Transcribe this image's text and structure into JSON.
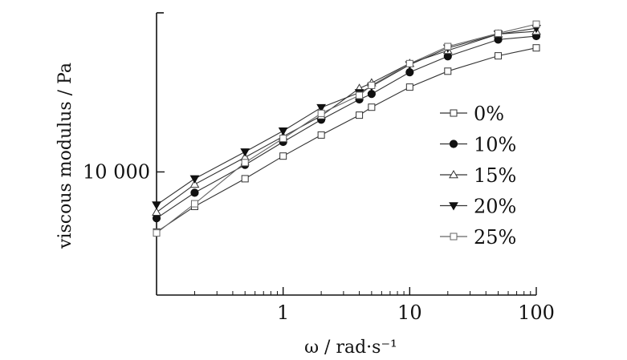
{
  "chart_data": {
    "type": "line",
    "xlabel": "ω / rad·s⁻¹",
    "ylabel": "viscous modulus / Pa",
    "xscale": "log",
    "yscale": "log",
    "xlim": [
      0.1,
      100
    ],
    "ylim": [
      2000,
      80000
    ],
    "x_ticks": [
      1,
      10,
      100
    ],
    "x_tick_labels": [
      "1",
      "10",
      "100"
    ],
    "y_ticks": [
      10000
    ],
    "y_tick_labels": [
      "10 000"
    ],
    "grid": false,
    "legend_position": "right",
    "marker_colors": {
      "filled": "#111111",
      "open": "#ffffff",
      "line": "#333333"
    },
    "series": [
      {
        "name": "0%",
        "marker": "square-open",
        "x": [
          0.1,
          0.2,
          0.5,
          1,
          2,
          4,
          5,
          10,
          20,
          50,
          100
        ],
        "y": [
          4560,
          6370,
          9150,
          12300,
          16200,
          21000,
          23300,
          30300,
          37300,
          45600,
          50600
        ]
      },
      {
        "name": "10%",
        "marker": "circle-filled",
        "x": [
          0.1,
          0.2,
          0.5,
          1,
          2,
          4,
          5,
          10,
          20,
          50,
          100
        ],
        "y": [
          5460,
          7620,
          10970,
          14800,
          19800,
          25800,
          27700,
          36800,
          45300,
          56400,
          59000
        ]
      },
      {
        "name": "15%",
        "marker": "triangle-open",
        "x": [
          0.1,
          0.2,
          0.5,
          1,
          2,
          4,
          5,
          10,
          20,
          50,
          100
        ],
        "y": [
          5900,
          8500,
          12100,
          15900,
          20800,
          29800,
          32000,
          41300,
          48900,
          60600,
          62800
        ]
      },
      {
        "name": "20%",
        "marker": "triangle-down-filled",
        "x": [
          0.1,
          0.2,
          0.5,
          1,
          2,
          4,
          5,
          10,
          20,
          50,
          100
        ],
        "y": [
          6500,
          9150,
          13000,
          17100,
          23200,
          28200,
          30600,
          40600,
          50500,
          60600,
          65400
        ]
      },
      {
        "name": "25%",
        "marker": "square-open-grey",
        "x": [
          0.1,
          0.2,
          0.5,
          1,
          2,
          4,
          5,
          10,
          20,
          50,
          100
        ],
        "y": [
          4500,
          6600,
          11300,
          15500,
          21500,
          27200,
          31000,
          41200,
          51500,
          61200,
          69000
        ]
      }
    ]
  }
}
